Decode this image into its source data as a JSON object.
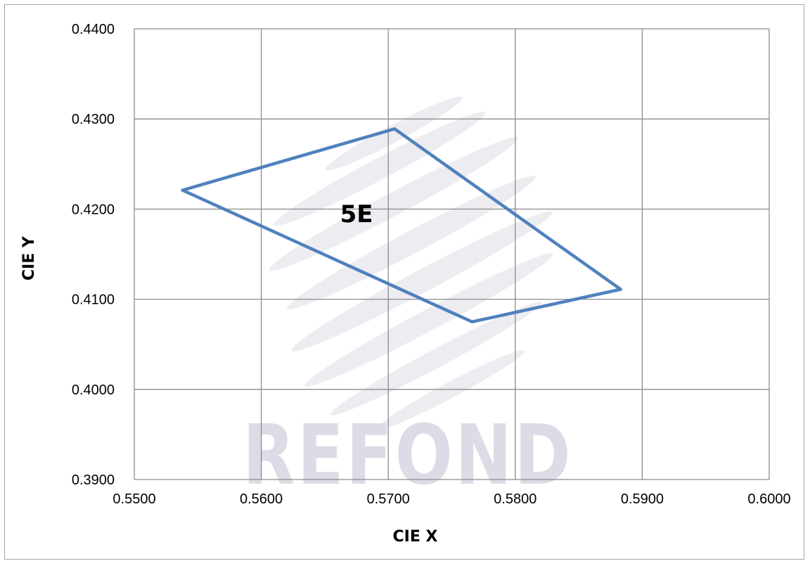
{
  "chart_data": {
    "type": "scatter",
    "title": "",
    "xlabel": "CIE X",
    "ylabel": "CIE Y",
    "xlim": [
      0.55,
      0.6
    ],
    "ylim": [
      0.39,
      0.44
    ],
    "x_ticks": [
      "0.5500",
      "0.5600",
      "0.5700",
      "0.5800",
      "0.5900",
      "0.6000"
    ],
    "y_ticks": [
      "0.3900",
      "0.4000",
      "0.4100",
      "0.4200",
      "0.4300",
      "0.4400"
    ],
    "grid": true,
    "series": [
      {
        "points": [
          {
            "x": 0.5538,
            "y": 0.4221
          },
          {
            "x": 0.5705,
            "y": 0.4289
          },
          {
            "x": 0.5883,
            "y": 0.4111
          },
          {
            "x": 0.5766,
            "y": 0.4075
          },
          {
            "x": 0.5538,
            "y": 0.4221
          }
        ],
        "color": "#4f81bd"
      }
    ],
    "annotations": [
      {
        "text": "5E",
        "x": 0.5675,
        "y": 0.4195
      }
    ]
  },
  "watermark": {
    "text": "REFOND",
    "color": "#dcdce6"
  }
}
